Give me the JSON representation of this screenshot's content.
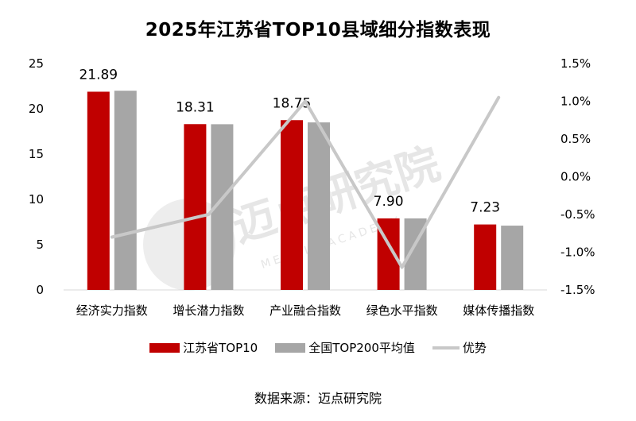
{
  "chart_data": {
    "type": "bar",
    "title": "2025年江苏省TOP10县域细分指数表现",
    "categories": [
      "经济实力指数",
      "增长潜力指数",
      "产业融合指数",
      "绿色水平指数",
      "媒体传播指数"
    ],
    "series": [
      {
        "name": "江苏省TOP10",
        "type": "bar",
        "axis": "left",
        "color": "#C00000",
        "values": [
          21.89,
          18.31,
          18.75,
          7.9,
          7.23
        ],
        "data_labels": [
          "21.89",
          "18.31",
          "18.75",
          "7.90",
          "7.23"
        ]
      },
      {
        "name": "全国TOP200平均值",
        "type": "bar",
        "axis": "left",
        "color": "#A6A6A6",
        "values": [
          22.0,
          18.3,
          18.5,
          7.9,
          7.1
        ]
      },
      {
        "name": "优势",
        "type": "line",
        "axis": "right",
        "color": "#C8C8C8",
        "values": [
          -0.8,
          -0.5,
          1.0,
          -1.2,
          1.05
        ]
      }
    ],
    "y_left": {
      "range": [
        0,
        25
      ],
      "ticks": [
        "0",
        "5",
        "10",
        "15",
        "20",
        "25"
      ]
    },
    "y_right": {
      "range": [
        -1.5,
        1.5
      ],
      "ticks": [
        "-1.5%",
        "-1.0%",
        "-0.5%",
        "0.0%",
        "0.5%",
        "1.0%",
        "1.5%"
      ]
    },
    "grid": false,
    "legend_position": "bottom",
    "watermark": {
      "main": "迈点研究院",
      "sub": "MEADIN ACADEMY"
    }
  },
  "source": "数据来源：迈点研究院"
}
